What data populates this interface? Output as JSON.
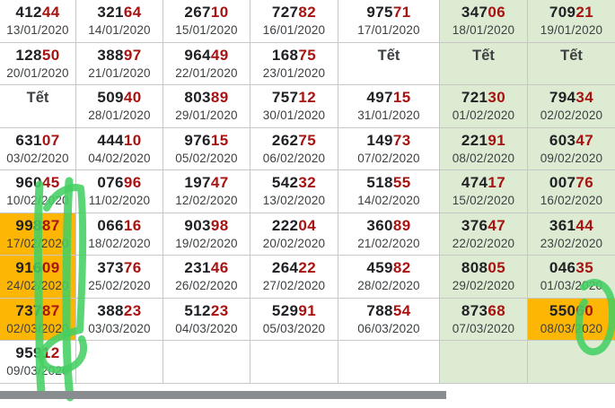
{
  "app": {
    "description_label": "lottery-results-calendar",
    "tet_label": "Tết"
  },
  "colors": {
    "weekend_cell_bg": "#ddebd2",
    "highlight_cell_bg": "#fcb603",
    "number_black": "#202124",
    "number_red": "#a81311",
    "date_text": "#3c4043",
    "grid_border": "#c7c7c7",
    "marker_green": "#46cf63",
    "scrollbar_gray": "#8a8d8f"
  },
  "table": {
    "rows": [
      {
        "cells": [
          {
            "black": "412",
            "red": "44",
            "date": "13/01/2020",
            "bg": "plain"
          },
          {
            "black": "321",
            "red": "64",
            "date": "14/01/2020",
            "bg": "plain"
          },
          {
            "black": "267",
            "red": "10",
            "date": "15/01/2020",
            "bg": "plain"
          },
          {
            "black": "727",
            "red": "82",
            "date": "16/01/2020",
            "bg": "plain"
          },
          {
            "black": "975",
            "red": "71",
            "date": "17/01/2020",
            "bg": "plain"
          },
          {
            "black": "347",
            "red": "06",
            "date": "18/01/2020",
            "bg": "green"
          },
          {
            "black": "709",
            "red": "21",
            "date": "19/01/2020",
            "bg": "green"
          }
        ]
      },
      {
        "cells": [
          {
            "black": "128",
            "red": "50",
            "date": "20/01/2020",
            "bg": "plain"
          },
          {
            "black": "388",
            "red": "97",
            "date": "21/01/2020",
            "bg": "plain"
          },
          {
            "black": "964",
            "red": "49",
            "date": "22/01/2020",
            "bg": "plain"
          },
          {
            "black": "168",
            "red": "75",
            "date": "23/01/2020",
            "bg": "plain"
          },
          {
            "label": "Tết",
            "bg": "plain"
          },
          {
            "label": "Tết",
            "bg": "green"
          },
          {
            "label": "Tết",
            "bg": "green"
          }
        ]
      },
      {
        "cells": [
          {
            "label": "Tết",
            "bg": "plain"
          },
          {
            "black": "509",
            "red": "40",
            "date": "28/01/2020",
            "bg": "plain"
          },
          {
            "black": "803",
            "red": "89",
            "date": "29/01/2020",
            "bg": "plain"
          },
          {
            "black": "757",
            "red": "12",
            "date": "30/01/2020",
            "bg": "plain"
          },
          {
            "black": "497",
            "red": "15",
            "date": "31/01/2020",
            "bg": "plain"
          },
          {
            "black": "721",
            "red": "30",
            "date": "01/02/2020",
            "bg": "green"
          },
          {
            "black": "794",
            "red": "34",
            "date": "02/02/2020",
            "bg": "green"
          }
        ]
      },
      {
        "cells": [
          {
            "black": "631",
            "red": "07",
            "date": "03/02/2020",
            "bg": "plain"
          },
          {
            "black": "444",
            "red": "10",
            "date": "04/02/2020",
            "bg": "plain"
          },
          {
            "black": "976",
            "red": "15",
            "date": "05/02/2020",
            "bg": "plain"
          },
          {
            "black": "262",
            "red": "75",
            "date": "06/02/2020",
            "bg": "plain"
          },
          {
            "black": "149",
            "red": "73",
            "date": "07/02/2020",
            "bg": "plain"
          },
          {
            "black": "221",
            "red": "91",
            "date": "08/02/2020",
            "bg": "green"
          },
          {
            "black": "603",
            "red": "47",
            "date": "09/02/2020",
            "bg": "green"
          }
        ]
      },
      {
        "cells": [
          {
            "black": "960",
            "red": "45",
            "date": "10/02/2020",
            "bg": "plain"
          },
          {
            "black": "076",
            "red": "96",
            "date": "11/02/2020",
            "bg": "plain"
          },
          {
            "black": "197",
            "red": "47",
            "date": "12/02/2020",
            "bg": "plain"
          },
          {
            "black": "542",
            "red": "32",
            "date": "13/02/2020",
            "bg": "plain"
          },
          {
            "black": "518",
            "red": "55",
            "date": "14/02/2020",
            "bg": "plain"
          },
          {
            "black": "474",
            "red": "17",
            "date": "15/02/2020",
            "bg": "green"
          },
          {
            "black": "007",
            "red": "76",
            "date": "16/02/2020",
            "bg": "green"
          }
        ]
      },
      {
        "cells": [
          {
            "black": "998",
            "red": "87",
            "date": "17/02/2020",
            "bg": "orange"
          },
          {
            "black": "066",
            "red": "16",
            "date": "18/02/2020",
            "bg": "plain"
          },
          {
            "black": "903",
            "red": "98",
            "date": "19/02/2020",
            "bg": "plain"
          },
          {
            "black": "222",
            "red": "04",
            "date": "20/02/2020",
            "bg": "plain"
          },
          {
            "black": "360",
            "red": "89",
            "date": "21/02/2020",
            "bg": "plain"
          },
          {
            "black": "376",
            "red": "47",
            "date": "22/02/2020",
            "bg": "green"
          },
          {
            "black": "361",
            "red": "44",
            "date": "23/02/2020",
            "bg": "green"
          }
        ]
      },
      {
        "cells": [
          {
            "black": "916",
            "red": "09",
            "date": "24/02/2020",
            "bg": "orange"
          },
          {
            "black": "373",
            "red": "76",
            "date": "25/02/2020",
            "bg": "plain"
          },
          {
            "black": "231",
            "red": "46",
            "date": "26/02/2020",
            "bg": "plain"
          },
          {
            "black": "264",
            "red": "22",
            "date": "27/02/2020",
            "bg": "plain"
          },
          {
            "black": "459",
            "red": "82",
            "date": "28/02/2020",
            "bg": "plain"
          },
          {
            "black": "808",
            "red": "05",
            "date": "29/02/2020",
            "bg": "green"
          },
          {
            "black": "046",
            "red": "35",
            "date": "01/03/2020",
            "bg": "green"
          }
        ]
      },
      {
        "cells": [
          {
            "black": "737",
            "red": "87",
            "date": "02/03/2020",
            "bg": "orange"
          },
          {
            "black": "388",
            "red": "23",
            "date": "03/03/2020",
            "bg": "plain"
          },
          {
            "black": "512",
            "red": "23",
            "date": "04/03/2020",
            "bg": "plain"
          },
          {
            "black": "529",
            "red": "91",
            "date": "05/03/2020",
            "bg": "plain"
          },
          {
            "black": "788",
            "red": "54",
            "date": "06/03/2020",
            "bg": "plain"
          },
          {
            "black": "873",
            "red": "68",
            "date": "07/03/2020",
            "bg": "green"
          },
          {
            "black": "550",
            "red": "60",
            "date": "08/03/2020",
            "bg": "orange"
          }
        ]
      },
      {
        "cells": [
          {
            "black": "959",
            "red": "12",
            "date": "09/03/2020",
            "bg": "plain"
          },
          {
            "empty": true,
            "bg": "plain"
          },
          {
            "empty": true,
            "bg": "plain"
          },
          {
            "empty": true,
            "bg": "plain"
          },
          {
            "empty": true,
            "bg": "plain"
          },
          {
            "empty": true,
            "bg": "green"
          },
          {
            "empty": true,
            "bg": "green"
          }
        ]
      }
    ]
  },
  "annotations": {
    "marker_color": "#46cf63",
    "items": [
      "hand-drawn-vertical-line-left",
      "hand-drawn-vertical-line-left-2",
      "hand-drawn-bracket-loop-around-first-column-highlights",
      "hand-drawn-circle-around-55060"
    ]
  }
}
